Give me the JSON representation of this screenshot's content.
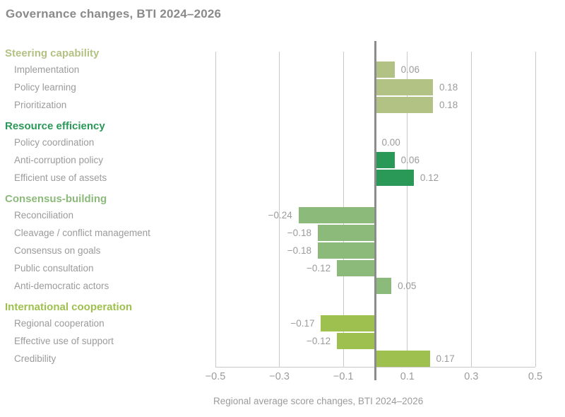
{
  "title": "Governance changes, BTI 2024–2026",
  "palette": {
    "title_gray": "#8a8a8a",
    "label_gray": "#9b9b9b",
    "grid_gray": "#c9c9c9",
    "zero_line_gray": "#8c8c8c",
    "steering_capability": "#b2c284",
    "resource_efficiency": "#2a9957",
    "consensus_building": "#8cba7a",
    "international_cooperation": "#9ec04e"
  },
  "chart_data": {
    "type": "bar",
    "orientation": "horizontal",
    "title": "Governance changes, BTI 2024–2026",
    "xlabel": "Regional average score changes, BTI 2024–2026",
    "xlim": [
      -0.5,
      0.5
    ],
    "x_tick_values": [
      -0.5,
      -0.3,
      -0.1,
      0.1,
      0.3,
      0.5
    ],
    "x_tick_labels": [
      "−0.5",
      "−0.3",
      "−0.1",
      "0.1",
      "0.3",
      "0.5"
    ],
    "grid": "vertical",
    "legend": "none",
    "groups": [
      {
        "name": "Steering capability",
        "color": "#b2c284",
        "items": [
          {
            "label": "Implementation",
            "value": 0.06,
            "value_label": "0.06"
          },
          {
            "label": "Policy learning",
            "value": 0.18,
            "value_label": "0.18"
          },
          {
            "label": "Prioritization",
            "value": 0.18,
            "value_label": "0.18"
          }
        ]
      },
      {
        "name": "Resource efficiency",
        "color": "#2a9957",
        "items": [
          {
            "label": "Policy coordination",
            "value": 0.0,
            "value_label": "0.00"
          },
          {
            "label": "Anti-corruption policy",
            "value": 0.06,
            "value_label": "0.06"
          },
          {
            "label": "Efficient use of assets",
            "value": 0.12,
            "value_label": "0.12"
          }
        ]
      },
      {
        "name": "Consensus-building",
        "color": "#8cba7a",
        "items": [
          {
            "label": "Reconciliation",
            "value": -0.24,
            "value_label": "−0.24"
          },
          {
            "label": "Cleavage / conflict management",
            "value": -0.18,
            "value_label": "−0.18"
          },
          {
            "label": "Consensus on goals",
            "value": -0.18,
            "value_label": "−0.18"
          },
          {
            "label": "Public consultation",
            "value": -0.12,
            "value_label": "−0.12"
          },
          {
            "label": "Anti-democratic actors",
            "value": 0.05,
            "value_label": "0.05"
          }
        ]
      },
      {
        "name": "International cooperation",
        "color": "#9ec04e",
        "items": [
          {
            "label": "Regional cooperation",
            "value": -0.17,
            "value_label": "−0.17"
          },
          {
            "label": "Effective use of support",
            "value": -0.12,
            "value_label": "−0.12"
          },
          {
            "label": "Credibility",
            "value": 0.17,
            "value_label": "0.17"
          }
        ]
      }
    ]
  }
}
